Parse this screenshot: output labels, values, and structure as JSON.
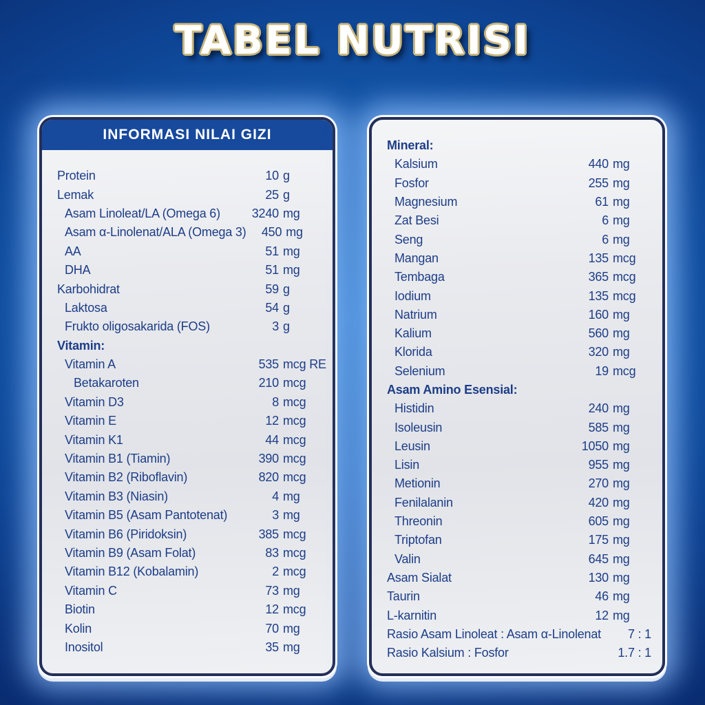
{
  "title": "TABEL NUTRISI",
  "colors": {
    "background_center": "#1b6dc0",
    "background_edge": "#091f55",
    "title_fill": "#ffffff",
    "title_outline": "#c9b67c",
    "panel_header_bg": "#17499c",
    "panel_bg": "#eceef1",
    "panel_border": "#232f58",
    "text": "#1d3d87"
  },
  "left_panel": {
    "header": "INFORMASI NILAI GIZI",
    "rows": [
      {
        "label": "Protein",
        "value": "10",
        "unit": "g",
        "indent": 0
      },
      {
        "label": "Lemak",
        "value": "25",
        "unit": "g",
        "indent": 0
      },
      {
        "label": "Asam Linoleat/LA (Omega 6)",
        "value": "3240",
        "unit": "mg",
        "indent": 1
      },
      {
        "label": "Asam α-Linolenat/ALA (Omega 3)",
        "value": "450",
        "unit": "mg",
        "indent": 1
      },
      {
        "label": "AA",
        "value": "51",
        "unit": "mg",
        "indent": 1
      },
      {
        "label": "DHA",
        "value": "51",
        "unit": "mg",
        "indent": 1
      },
      {
        "label": "Karbohidrat",
        "value": "59",
        "unit": "g",
        "indent": 0
      },
      {
        "label": "Laktosa",
        "value": "54",
        "unit": "g",
        "indent": 1
      },
      {
        "label": "Frukto oligosakarida (FOS)",
        "value": "3",
        "unit": "g",
        "indent": 1
      },
      {
        "label": "Vitamin:",
        "section": true,
        "indent": 0
      },
      {
        "label": "Vitamin A",
        "value": "535",
        "unit": "mcg RE",
        "indent": 1
      },
      {
        "label": "Betakaroten",
        "value": "210",
        "unit": "mcg",
        "indent": 2
      },
      {
        "label": "Vitamin D3",
        "value": "8",
        "unit": "mcg",
        "indent": 1
      },
      {
        "label": "Vitamin E",
        "value": "12",
        "unit": "mcg",
        "indent": 1
      },
      {
        "label": "Vitamin K1",
        "value": "44",
        "unit": "mcg",
        "indent": 1
      },
      {
        "label": "Vitamin B1 (Tiamin)",
        "value": "390",
        "unit": "mcg",
        "indent": 1
      },
      {
        "label": "Vitamin B2 (Riboflavin)",
        "value": "820",
        "unit": "mcg",
        "indent": 1
      },
      {
        "label": "Vitamin B3 (Niasin)",
        "value": "4",
        "unit": "mg",
        "indent": 1
      },
      {
        "label": "Vitamin B5 (Asam Pantotenat)",
        "value": "3",
        "unit": "mg",
        "indent": 1
      },
      {
        "label": "Vitamin B6 (Piridoksin)",
        "value": "385",
        "unit": "mcg",
        "indent": 1
      },
      {
        "label": "Vitamin B9 (Asam Folat)",
        "value": "83",
        "unit": "mcg",
        "indent": 1
      },
      {
        "label": "Vitamin B12 (Kobalamin)",
        "value": "2",
        "unit": "mcg",
        "indent": 1
      },
      {
        "label": "Vitamin C",
        "value": "73",
        "unit": "mg",
        "indent": 1
      },
      {
        "label": "Biotin",
        "value": "12",
        "unit": "mcg",
        "indent": 1
      },
      {
        "label": "Kolin",
        "value": "70",
        "unit": "mg",
        "indent": 1
      },
      {
        "label": "Inositol",
        "value": "35",
        "unit": "mg",
        "indent": 1
      }
    ]
  },
  "right_panel": {
    "rows": [
      {
        "label": "Mineral:",
        "section": true,
        "indent": 0
      },
      {
        "label": "Kalsium",
        "value": "440",
        "unit": "mg",
        "indent": 1
      },
      {
        "label": "Fosfor",
        "value": "255",
        "unit": "mg",
        "indent": 1
      },
      {
        "label": "Magnesium",
        "value": "61",
        "unit": "mg",
        "indent": 1
      },
      {
        "label": "Zat Besi",
        "value": "6",
        "unit": "mg",
        "indent": 1
      },
      {
        "label": "Seng",
        "value": "6",
        "unit": "mg",
        "indent": 1
      },
      {
        "label": "Mangan",
        "value": "135",
        "unit": "mcg",
        "indent": 1
      },
      {
        "label": "Tembaga",
        "value": "365",
        "unit": "mcg",
        "indent": 1
      },
      {
        "label": "Iodium",
        "value": "135",
        "unit": "mcg",
        "indent": 1
      },
      {
        "label": "Natrium",
        "value": "160",
        "unit": "mg",
        "indent": 1
      },
      {
        "label": "Kalium",
        "value": "560",
        "unit": "mg",
        "indent": 1
      },
      {
        "label": "Klorida",
        "value": "320",
        "unit": "mg",
        "indent": 1
      },
      {
        "label": "Selenium",
        "value": "19",
        "unit": "mcg",
        "indent": 1
      },
      {
        "label": "Asam Amino Esensial:",
        "section": true,
        "indent": 0
      },
      {
        "label": "Histidin",
        "value": "240",
        "unit": "mg",
        "indent": 1
      },
      {
        "label": "Isoleusin",
        "value": "585",
        "unit": "mg",
        "indent": 1
      },
      {
        "label": "Leusin",
        "value": "1050",
        "unit": "mg",
        "indent": 1
      },
      {
        "label": "Lisin",
        "value": "955",
        "unit": "mg",
        "indent": 1
      },
      {
        "label": "Metionin",
        "value": "270",
        "unit": "mg",
        "indent": 1
      },
      {
        "label": "Fenilalanin",
        "value": "420",
        "unit": "mg",
        "indent": 1
      },
      {
        "label": "Threonin",
        "value": "605",
        "unit": "mg",
        "indent": 1
      },
      {
        "label": "Triptofan",
        "value": "175",
        "unit": "mg",
        "indent": 1
      },
      {
        "label": "Valin",
        "value": "645",
        "unit": "mg",
        "indent": 1
      },
      {
        "label": "Asam Sialat",
        "value": "130",
        "unit": "mg",
        "indent": 0
      },
      {
        "label": "Taurin",
        "value": "46",
        "unit": "mg",
        "indent": 0
      },
      {
        "label": "L-karnitin",
        "value": "12",
        "unit": "mg",
        "indent": 0
      },
      {
        "label": "Rasio Asam Linoleat : Asam α-Linolenat",
        "value": "7 : 1",
        "ratio": true,
        "indent": 0
      },
      {
        "label": "Rasio Kalsium : Fosfor",
        "value": "1.7 : 1",
        "ratio": true,
        "indent": 0
      }
    ]
  }
}
